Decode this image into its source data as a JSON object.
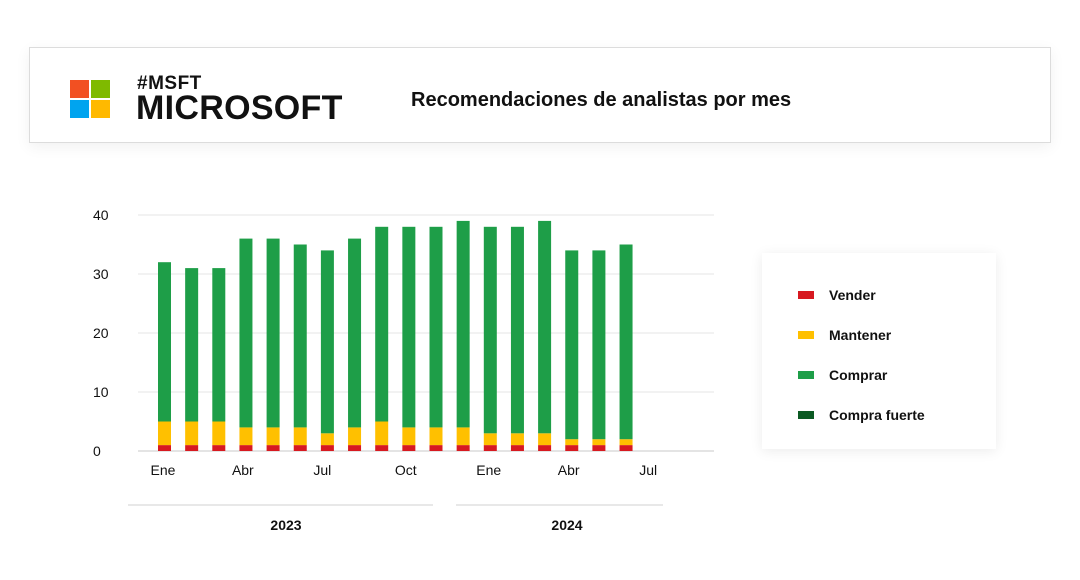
{
  "header": {
    "ticker": "#MSFT",
    "company": "MICROSOFT",
    "title": "Recomendaciones de analistas por mes",
    "logo_colors": [
      "#f25022",
      "#7fba00",
      "#00a4ef",
      "#ffb900"
    ]
  },
  "legend": {
    "items": [
      {
        "label": "Vender",
        "color": "#d71920"
      },
      {
        "label": "Mantener",
        "color": "#ffc000"
      },
      {
        "label": "Comprar",
        "color": "#1e9e48"
      },
      {
        "label": "Compra fuerte",
        "color": "#0b5a23"
      }
    ]
  },
  "chart_data": {
    "type": "bar",
    "stacked": true,
    "categories": [
      "Ene 2023",
      "Feb 2023",
      "Mar 2023",
      "Abr 2023",
      "May 2023",
      "Jun 2023",
      "Jul 2023",
      "Ago 2023",
      "Sep 2023",
      "Oct 2023",
      "Nov 2023",
      "Dic 2023",
      "Ene 2024",
      "Feb 2024",
      "Mar 2024",
      "Abr 2024",
      "May 2024",
      "Jun 2024"
    ],
    "series": [
      {
        "name": "Vender",
        "color": "#d71920",
        "values": [
          1,
          1,
          1,
          1,
          1,
          1,
          1,
          1,
          1,
          1,
          1,
          1,
          1,
          1,
          1,
          1,
          1,
          1
        ]
      },
      {
        "name": "Mantener",
        "color": "#ffc000",
        "values": [
          4,
          4,
          4,
          3,
          3,
          3,
          2,
          3,
          4,
          3,
          3,
          3,
          2,
          2,
          2,
          1,
          1,
          1
        ]
      },
      {
        "name": "Comprar",
        "color": "#1e9e48",
        "values": [
          27,
          26,
          26,
          32,
          32,
          31,
          31,
          32,
          33,
          34,
          34,
          35,
          35,
          35,
          36,
          32,
          32,
          33
        ]
      },
      {
        "name": "Compra fuerte",
        "color": "#0b5a23",
        "values": [
          0,
          0,
          0,
          0,
          0,
          0,
          0,
          0,
          0,
          0,
          0,
          0,
          0,
          0,
          0,
          0,
          0,
          0
        ]
      }
    ],
    "x_tick_labels": [
      "Ene",
      "Abr",
      "Jul",
      "Oct",
      "Ene",
      "Abr",
      "Jul"
    ],
    "year_labels": [
      "2023",
      "2024"
    ],
    "yticks": [
      0,
      10,
      20,
      30,
      40
    ],
    "ylim": [
      0,
      40
    ],
    "grid": true,
    "legend_position": "right"
  }
}
